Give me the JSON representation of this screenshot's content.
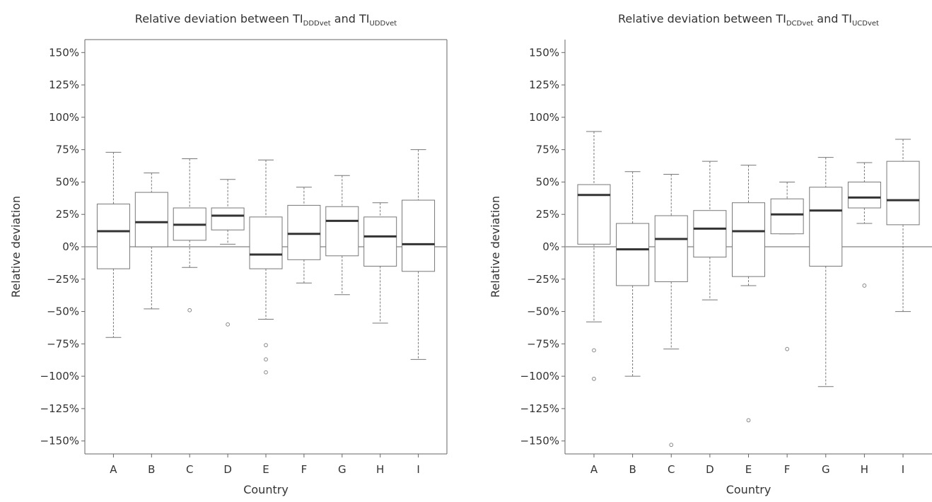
{
  "chart_data": [
    {
      "type": "box",
      "title": {
        "prefix": "Relative deviation between TI",
        "sub1": "DDDvet",
        "mid": " and TI",
        "sub2": "UDDvet"
      },
      "xlabel": "Country",
      "ylabel": "Relative deviation",
      "ylim": [
        -160,
        160
      ],
      "yticks": [
        150,
        125,
        100,
        75,
        50,
        25,
        0,
        -25,
        -50,
        -75,
        -100,
        -125,
        -150
      ],
      "ytick_labels": [
        "150%",
        "125%",
        "100%",
        "75%",
        "50%",
        "25%",
        "0%",
        "−25%",
        "−50%",
        "−75%",
        "−100%",
        "−125%",
        "−150%"
      ],
      "reference_line": 0,
      "categories": [
        "A",
        "B",
        "C",
        "D",
        "E",
        "F",
        "G",
        "H",
        "I"
      ],
      "boxes": [
        {
          "category": "A",
          "min": -70,
          "q1": -17,
          "median": 12,
          "q3": 33,
          "max": 73,
          "outliers": []
        },
        {
          "category": "B",
          "min": -48,
          "q1": 0,
          "median": 19,
          "q3": 42,
          "max": 57,
          "outliers": []
        },
        {
          "category": "C",
          "min": -16,
          "q1": 5,
          "median": 17,
          "q3": 30,
          "max": 68,
          "outliers": [
            -49
          ]
        },
        {
          "category": "D",
          "min": 2,
          "q1": 13,
          "median": 24,
          "q3": 30,
          "max": 52,
          "outliers": [
            -60
          ]
        },
        {
          "category": "E",
          "min": -56,
          "q1": -17,
          "median": -6,
          "q3": 23,
          "max": 67,
          "outliers": [
            -76,
            -87,
            -97
          ]
        },
        {
          "category": "F",
          "min": -28,
          "q1": -10,
          "median": 10,
          "q3": 32,
          "max": 46,
          "outliers": []
        },
        {
          "category": "G",
          "min": -37,
          "q1": -7,
          "median": 20,
          "q3": 31,
          "max": 55,
          "outliers": []
        },
        {
          "category": "H",
          "min": -59,
          "q1": -15,
          "median": 8,
          "q3": 23,
          "max": 34,
          "outliers": []
        },
        {
          "category": "I",
          "min": -87,
          "q1": -19,
          "median": 2,
          "q3": 36,
          "max": 75,
          "outliers": []
        }
      ]
    },
    {
      "type": "box",
      "title": {
        "prefix": "Relative deviation between TI",
        "sub1": "DCDvet",
        "mid": " and TI",
        "sub2": "UCDvet"
      },
      "xlabel": "Country",
      "ylabel": "Relative deviation",
      "ylim": [
        -160,
        160
      ],
      "yticks": [
        150,
        125,
        100,
        75,
        50,
        25,
        0,
        -25,
        -50,
        -75,
        -100,
        -125,
        -150
      ],
      "ytick_labels": [
        "150%",
        "125%",
        "100%",
        "75%",
        "50%",
        "25%",
        "0%",
        "−25%",
        "−50%",
        "−75%",
        "−100%",
        "−125%",
        "−150%"
      ],
      "reference_line": 0,
      "categories": [
        "A",
        "B",
        "C",
        "D",
        "E",
        "F",
        "G",
        "H",
        "I"
      ],
      "boxes": [
        {
          "category": "A",
          "min": -58,
          "q1": 2,
          "median": 40,
          "q3": 48,
          "max": 89,
          "outliers": [
            -80,
            -102
          ]
        },
        {
          "category": "B",
          "min": -100,
          "q1": -30,
          "median": -2,
          "q3": 18,
          "max": 58,
          "outliers": []
        },
        {
          "category": "C",
          "min": -79,
          "q1": -27,
          "median": 6,
          "q3": 24,
          "max": 56,
          "outliers": [
            -153
          ]
        },
        {
          "category": "D",
          "min": -41,
          "q1": -8,
          "median": 14,
          "q3": 28,
          "max": 66,
          "outliers": []
        },
        {
          "category": "E",
          "min": -30,
          "q1": -23,
          "median": 12,
          "q3": 34,
          "max": 63,
          "outliers": [
            -134
          ]
        },
        {
          "category": "F",
          "min": 10,
          "q1": 10,
          "median": 25,
          "q3": 37,
          "max": 50,
          "outliers": [
            -79
          ]
        },
        {
          "category": "G",
          "min": -108,
          "q1": -15,
          "median": 28,
          "q3": 46,
          "max": 69,
          "outliers": []
        },
        {
          "category": "H",
          "min": 18,
          "q1": 30,
          "median": 38,
          "q3": 50,
          "max": 65,
          "outliers": [
            -30
          ]
        },
        {
          "category": "I",
          "min": -50,
          "q1": 17,
          "median": 36,
          "q3": 66,
          "max": 83,
          "outliers": []
        }
      ]
    }
  ]
}
